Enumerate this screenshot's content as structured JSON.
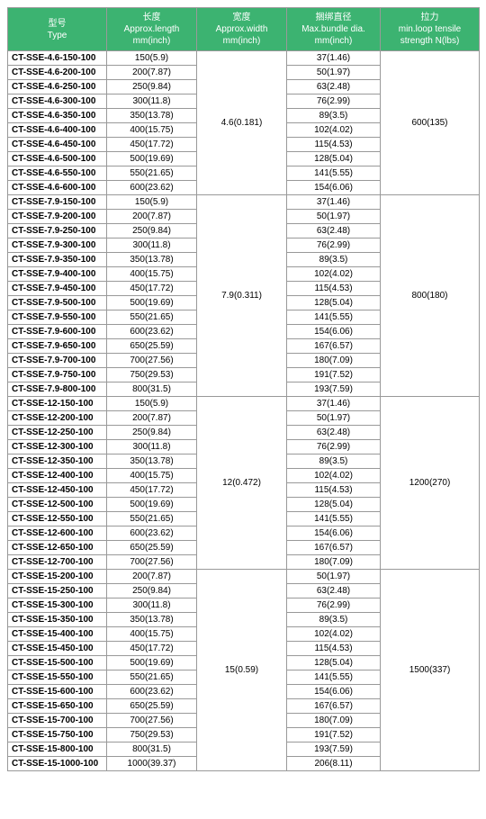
{
  "headers": {
    "type": "型号\nType",
    "length": "长度\nApprox.length\nmm(inch)",
    "width": "宽度\nApprox.width\nmm(inch)",
    "dia": "捆绑直径\nMax.bundle dia.\nmm(inch)",
    "tens": "拉力\nmin.loop tensile\nstrength N(lbs)"
  },
  "colors": {
    "header_bg": "#3cb371",
    "header_fg": "#ffffff",
    "cell_bg": "#ffffff",
    "cell_fg": "#000000",
    "border": "#999999"
  },
  "groups": [
    {
      "width": "4.6(0.181)",
      "tensile": "600(135)",
      "rows": [
        {
          "type": "CT-SSE-4.6-150-100",
          "length": "150(5.9)",
          "dia": "37(1.46)"
        },
        {
          "type": "CT-SSE-4.6-200-100",
          "length": "200(7.87)",
          "dia": "50(1.97)"
        },
        {
          "type": "CT-SSE-4.6-250-100",
          "length": "250(9.84)",
          "dia": "63(2.48)"
        },
        {
          "type": "CT-SSE-4.6-300-100",
          "length": "300(11.8)",
          "dia": "76(2.99)"
        },
        {
          "type": "CT-SSE-4.6-350-100",
          "length": "350(13.78)",
          "dia": "89(3.5)"
        },
        {
          "type": "CT-SSE-4.6-400-100",
          "length": "400(15.75)",
          "dia": "102(4.02)"
        },
        {
          "type": "CT-SSE-4.6-450-100",
          "length": "450(17.72)",
          "dia": "115(4.53)"
        },
        {
          "type": "CT-SSE-4.6-500-100",
          "length": "500(19.69)",
          "dia": "128(5.04)"
        },
        {
          "type": "CT-SSE-4.6-550-100",
          "length": "550(21.65)",
          "dia": "141(5.55)"
        },
        {
          "type": "CT-SSE-4.6-600-100",
          "length": "600(23.62)",
          "dia": "154(6.06)"
        }
      ]
    },
    {
      "width": "7.9(0.311)",
      "tensile": "800(180)",
      "rows": [
        {
          "type": "CT-SSE-7.9-150-100",
          "length": "150(5.9)",
          "dia": "37(1.46)"
        },
        {
          "type": "CT-SSE-7.9-200-100",
          "length": "200(7.87)",
          "dia": "50(1.97)"
        },
        {
          "type": "CT-SSE-7.9-250-100",
          "length": "250(9.84)",
          "dia": "63(2.48)"
        },
        {
          "type": "CT-SSE-7.9-300-100",
          "length": "300(11.8)",
          "dia": "76(2.99)"
        },
        {
          "type": "CT-SSE-7.9-350-100",
          "length": "350(13.78)",
          "dia": "89(3.5)"
        },
        {
          "type": "CT-SSE-7.9-400-100",
          "length": "400(15.75)",
          "dia": "102(4.02)"
        },
        {
          "type": "CT-SSE-7.9-450-100",
          "length": "450(17.72)",
          "dia": "115(4.53)"
        },
        {
          "type": "CT-SSE-7.9-500-100",
          "length": "500(19.69)",
          "dia": "128(5.04)"
        },
        {
          "type": "CT-SSE-7.9-550-100",
          "length": "550(21.65)",
          "dia": "141(5.55)"
        },
        {
          "type": "CT-SSE-7.9-600-100",
          "length": "600(23.62)",
          "dia": "154(6.06)"
        },
        {
          "type": "CT-SSE-7.9-650-100",
          "length": "650(25.59)",
          "dia": "167(6.57)"
        },
        {
          "type": "CT-SSE-7.9-700-100",
          "length": "700(27.56)",
          "dia": "180(7.09)"
        },
        {
          "type": "CT-SSE-7.9-750-100",
          "length": "750(29.53)",
          "dia": "191(7.52)"
        },
        {
          "type": "CT-SSE-7.9-800-100",
          "length": "800(31.5)",
          "dia": "193(7.59)"
        }
      ]
    },
    {
      "width": "12(0.472)",
      "tensile": "1200(270)",
      "rows": [
        {
          "type": "CT-SSE-12-150-100",
          "length": "150(5.9)",
          "dia": "37(1.46)"
        },
        {
          "type": "CT-SSE-12-200-100",
          "length": "200(7.87)",
          "dia": "50(1.97)"
        },
        {
          "type": "CT-SSE-12-250-100",
          "length": "250(9.84)",
          "dia": "63(2.48)"
        },
        {
          "type": "CT-SSE-12-300-100",
          "length": "300(11.8)",
          "dia": "76(2.99)"
        },
        {
          "type": "CT-SSE-12-350-100",
          "length": "350(13.78)",
          "dia": "89(3.5)"
        },
        {
          "type": "CT-SSE-12-400-100",
          "length": "400(15.75)",
          "dia": "102(4.02)"
        },
        {
          "type": "CT-SSE-12-450-100",
          "length": "450(17.72)",
          "dia": "115(4.53)"
        },
        {
          "type": "CT-SSE-12-500-100",
          "length": "500(19.69)",
          "dia": "128(5.04)"
        },
        {
          "type": "CT-SSE-12-550-100",
          "length": "550(21.65)",
          "dia": "141(5.55)"
        },
        {
          "type": "CT-SSE-12-600-100",
          "length": "600(23.62)",
          "dia": "154(6.06)"
        },
        {
          "type": "CT-SSE-12-650-100",
          "length": "650(25.59)",
          "dia": "167(6.57)"
        },
        {
          "type": "CT-SSE-12-700-100",
          "length": "700(27.56)",
          "dia": "180(7.09)"
        }
      ]
    },
    {
      "width": "15(0.59)",
      "tensile": "1500(337)",
      "rows": [
        {
          "type": "CT-SSE-15-200-100",
          "length": "200(7.87)",
          "dia": "50(1.97)"
        },
        {
          "type": "CT-SSE-15-250-100",
          "length": "250(9.84)",
          "dia": "63(2.48)"
        },
        {
          "type": "CT-SSE-15-300-100",
          "length": "300(11.8)",
          "dia": "76(2.99)"
        },
        {
          "type": "CT-SSE-15-350-100",
          "length": "350(13.78)",
          "dia": "89(3.5)"
        },
        {
          "type": "CT-SSE-15-400-100",
          "length": "400(15.75)",
          "dia": "102(4.02)"
        },
        {
          "type": "CT-SSE-15-450-100",
          "length": "450(17.72)",
          "dia": "115(4.53)"
        },
        {
          "type": "CT-SSE-15-500-100",
          "length": "500(19.69)",
          "dia": "128(5.04)"
        },
        {
          "type": "CT-SSE-15-550-100",
          "length": "550(21.65)",
          "dia": "141(5.55)"
        },
        {
          "type": "CT-SSE-15-600-100",
          "length": "600(23.62)",
          "dia": "154(6.06)"
        },
        {
          "type": "CT-SSE-15-650-100",
          "length": "650(25.59)",
          "dia": "167(6.57)"
        },
        {
          "type": "CT-SSE-15-700-100",
          "length": "700(27.56)",
          "dia": "180(7.09)"
        },
        {
          "type": "CT-SSE-15-750-100",
          "length": "750(29.53)",
          "dia": "191(7.52)"
        },
        {
          "type": "CT-SSE-15-800-100",
          "length": "800(31.5)",
          "dia": "193(7.59)"
        },
        {
          "type": "CT-SSE-15-1000-100",
          "length": "1000(39.37)",
          "dia": "206(8.11)"
        }
      ]
    }
  ]
}
